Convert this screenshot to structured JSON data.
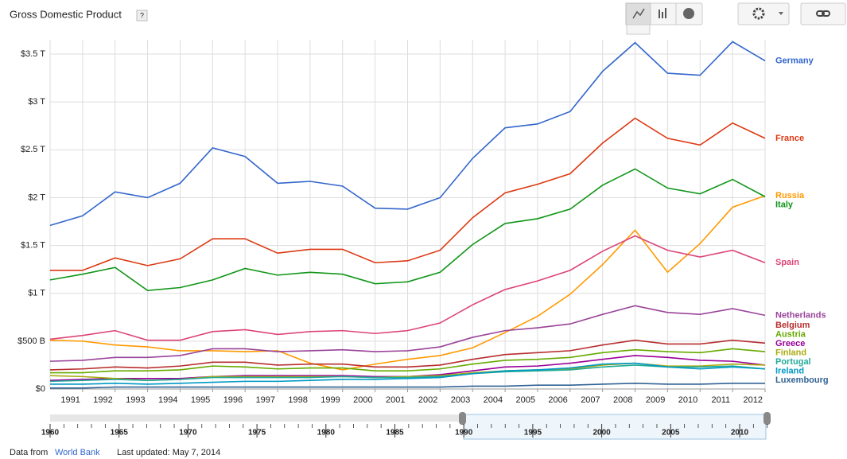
{
  "header": {
    "title": "Gross Domestic Product",
    "help": "?"
  },
  "chart_data": {
    "type": "line",
    "x": [
      1990,
      1991,
      1992,
      1993,
      1994,
      1995,
      1996,
      1997,
      1998,
      1999,
      2000,
      2001,
      2002,
      2003,
      2004,
      2005,
      2006,
      2007,
      2008,
      2009,
      2010,
      2011,
      2012
    ],
    "xlim": [
      1990,
      2012
    ],
    "xticks": [
      1991,
      1992,
      1993,
      1994,
      1995,
      1996,
      1997,
      1998,
      1999,
      2000,
      2001,
      2002,
      2003,
      2004,
      2005,
      2006,
      2007,
      2008,
      2009,
      2010,
      2011,
      2012
    ],
    "ylim": [
      0,
      3.65
    ],
    "yticks": [
      {
        "value": 0,
        "label": "$0"
      },
      {
        "value": 0.5,
        "label": "$500 B"
      },
      {
        "value": 1,
        "label": "$1 T"
      },
      {
        "value": 1.5,
        "label": "$1.5 T"
      },
      {
        "value": 2,
        "label": "$2 T"
      },
      {
        "value": 2.5,
        "label": "$2.5 T"
      },
      {
        "value": 3,
        "label": "$3 T"
      },
      {
        "value": 3.5,
        "label": "$3.5 T"
      }
    ],
    "grid": true,
    "series": [
      {
        "name": "Germany",
        "color": "#3366cc",
        "values": [
          1.71,
          1.81,
          2.06,
          2.0,
          2.15,
          2.52,
          2.43,
          2.15,
          2.17,
          2.12,
          1.89,
          1.88,
          2.0,
          2.41,
          2.73,
          2.77,
          2.9,
          3.32,
          3.62,
          3.3,
          3.28,
          3.63,
          3.43
        ]
      },
      {
        "name": "France",
        "color": "#dc3912",
        "values": [
          1.24,
          1.24,
          1.37,
          1.29,
          1.36,
          1.57,
          1.57,
          1.42,
          1.46,
          1.46,
          1.32,
          1.34,
          1.45,
          1.79,
          2.05,
          2.14,
          2.25,
          2.57,
          2.83,
          2.62,
          2.55,
          2.78,
          2.62
        ]
      },
      {
        "name": "Russia",
        "color": "#ff9900",
        "values": [
          0.51,
          0.5,
          0.46,
          0.44,
          0.4,
          0.4,
          0.39,
          0.4,
          0.27,
          0.2,
          0.26,
          0.31,
          0.35,
          0.43,
          0.59,
          0.76,
          0.99,
          1.3,
          1.66,
          1.22,
          1.52,
          1.9,
          2.02
        ]
      },
      {
        "name": "Italy",
        "color": "#109618",
        "values": [
          1.14,
          1.2,
          1.27,
          1.03,
          1.06,
          1.14,
          1.26,
          1.19,
          1.22,
          1.2,
          1.1,
          1.12,
          1.22,
          1.51,
          1.73,
          1.78,
          1.88,
          2.13,
          2.3,
          2.1,
          2.04,
          2.19,
          2.01
        ]
      },
      {
        "name": "Spain",
        "color": "#dd4477",
        "values": [
          0.52,
          0.56,
          0.61,
          0.51,
          0.51,
          0.6,
          0.62,
          0.57,
          0.6,
          0.61,
          0.58,
          0.61,
          0.69,
          0.88,
          1.04,
          1.13,
          1.24,
          1.44,
          1.6,
          1.45,
          1.38,
          1.45,
          1.32
        ]
      },
      {
        "name": "Netherlands",
        "color": "#994499",
        "values": [
          0.29,
          0.3,
          0.33,
          0.33,
          0.35,
          0.42,
          0.42,
          0.39,
          0.4,
          0.41,
          0.39,
          0.4,
          0.44,
          0.54,
          0.61,
          0.64,
          0.68,
          0.78,
          0.87,
          0.8,
          0.78,
          0.84,
          0.77
        ]
      },
      {
        "name": "Belgium",
        "color": "#b82e2e",
        "values": [
          0.2,
          0.21,
          0.23,
          0.22,
          0.24,
          0.28,
          0.28,
          0.25,
          0.26,
          0.26,
          0.23,
          0.23,
          0.25,
          0.31,
          0.36,
          0.38,
          0.4,
          0.46,
          0.51,
          0.47,
          0.47,
          0.51,
          0.48
        ]
      },
      {
        "name": "Austria",
        "color": "#66aa00",
        "values": [
          0.17,
          0.17,
          0.19,
          0.19,
          0.2,
          0.24,
          0.23,
          0.21,
          0.22,
          0.22,
          0.19,
          0.19,
          0.21,
          0.26,
          0.3,
          0.31,
          0.33,
          0.38,
          0.41,
          0.39,
          0.38,
          0.42,
          0.39
        ]
      },
      {
        "name": "Greece",
        "color": "#990099",
        "values": [
          0.09,
          0.1,
          0.11,
          0.11,
          0.11,
          0.13,
          0.14,
          0.14,
          0.14,
          0.14,
          0.13,
          0.13,
          0.15,
          0.19,
          0.23,
          0.24,
          0.27,
          0.31,
          0.35,
          0.33,
          0.3,
          0.29,
          0.25
        ]
      },
      {
        "name": "Finland",
        "color": "#aaaa11",
        "values": [
          0.14,
          0.13,
          0.11,
          0.09,
          0.1,
          0.13,
          0.13,
          0.13,
          0.13,
          0.13,
          0.12,
          0.13,
          0.14,
          0.17,
          0.19,
          0.2,
          0.21,
          0.25,
          0.27,
          0.24,
          0.24,
          0.26,
          0.25
        ]
      },
      {
        "name": "Portugal",
        "color": "#22aa99",
        "values": [
          0.08,
          0.09,
          0.1,
          0.09,
          0.1,
          0.12,
          0.12,
          0.12,
          0.12,
          0.13,
          0.12,
          0.12,
          0.13,
          0.16,
          0.18,
          0.19,
          0.2,
          0.23,
          0.25,
          0.23,
          0.23,
          0.24,
          0.21
        ]
      },
      {
        "name": "Ireland",
        "color": "#0099c6",
        "values": [
          0.05,
          0.05,
          0.06,
          0.05,
          0.06,
          0.07,
          0.08,
          0.08,
          0.09,
          0.1,
          0.1,
          0.11,
          0.12,
          0.16,
          0.19,
          0.2,
          0.22,
          0.26,
          0.27,
          0.23,
          0.21,
          0.23,
          0.21
        ]
      },
      {
        "name": "Luxembourg",
        "color": "#316395",
        "values": [
          0.01,
          0.01,
          0.02,
          0.02,
          0.02,
          0.02,
          0.02,
          0.02,
          0.02,
          0.02,
          0.02,
          0.02,
          0.02,
          0.03,
          0.03,
          0.04,
          0.04,
          0.05,
          0.06,
          0.05,
          0.05,
          0.06,
          0.06
        ]
      }
    ]
  },
  "timeline": {
    "labels": [
      "1960",
      "1965",
      "1970",
      "1975",
      "1980",
      "1985",
      "1990",
      "1995",
      "2000",
      "2005",
      "2010"
    ]
  },
  "footer": {
    "source_prefix": "Data from",
    "source": "World Bank",
    "updated": "Last updated: May 7, 2014"
  }
}
